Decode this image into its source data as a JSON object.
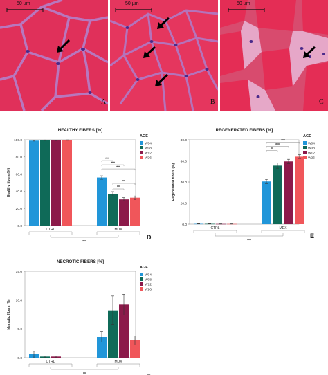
{
  "figure": {
    "panel_letters": [
      "A",
      "B",
      "C",
      "D",
      "E",
      "F"
    ],
    "scalebar_label": "50 µm"
  },
  "colors": {
    "W04": "#2196d9",
    "W08": "#0f6a58",
    "W12": "#8c1a4a",
    "W26": "#f0565a",
    "tissue": "#e5345a",
    "membrane": "#b482c8"
  },
  "chart_data": [
    {
      "type": "bar",
      "title": "HEALTHY FIBERS [%]",
      "ylabel": "Healthy fibers (%)",
      "ylim": [
        0,
        100
      ],
      "yticks": [
        "0.0",
        "20.0",
        "40.0",
        "60.0",
        "80.0",
        "100.0"
      ],
      "categories": [
        "CTRL",
        "MDX"
      ],
      "legend_title": "AGE",
      "series": [
        {
          "name": "W04",
          "values": [
            99.0,
            56.0
          ],
          "errors": [
            0.5,
            2.0
          ]
        },
        {
          "name": "W08",
          "values": [
            99.5,
            37.0
          ],
          "errors": [
            0.3,
            2.5
          ]
        },
        {
          "name": "W12",
          "values": [
            99.4,
            30.5
          ],
          "errors": [
            0.3,
            2.0
          ]
        },
        {
          "name": "W26",
          "values": [
            99.6,
            32.5
          ],
          "errors": [
            0.3,
            2.0
          ]
        }
      ],
      "significance_within": [
        "***",
        "***",
        "***",
        "**",
        "**"
      ],
      "significance_between": "***",
      "panel": "D"
    },
    {
      "type": "bar",
      "title": "REGENERATED FIBERS [%]",
      "ylabel": "Regenerated fibers (%)",
      "ylim": [
        0,
        80
      ],
      "yticks": [
        "0.0",
        "20.0",
        "40.0",
        "60.0",
        "80.0"
      ],
      "categories": [
        "CTRL",
        "MDX"
      ],
      "legend_title": "AGE",
      "series": [
        {
          "name": "W04",
          "values": [
            0.3,
            40.5
          ],
          "errors": [
            0.1,
            2.0
          ]
        },
        {
          "name": "W08",
          "values": [
            0.3,
            55.5
          ],
          "errors": [
            0.1,
            2.5
          ]
        },
        {
          "name": "W12",
          "values": [
            0.2,
            59.5
          ],
          "errors": [
            0.1,
            2.0
          ]
        },
        {
          "name": "W26",
          "values": [
            0.2,
            64.0
          ],
          "errors": [
            0.1,
            1.8
          ]
        }
      ],
      "significance_within": [
        "*",
        "***",
        "***"
      ],
      "significance_between": "***",
      "panel": "E"
    },
    {
      "type": "bar",
      "title": "NECROTIC FIBERS [%]",
      "ylabel": "Necrotic fibers (%)",
      "ylim": [
        0,
        15
      ],
      "yticks": [
        "0.0",
        "5.0",
        "10.0",
        "15.0"
      ],
      "categories": [
        "CTRL",
        "MDX"
      ],
      "legend_title": "AGE",
      "series": [
        {
          "name": "W04",
          "values": [
            0.6,
            3.6
          ],
          "errors": [
            0.5,
            0.9
          ]
        },
        {
          "name": "W08",
          "values": [
            0.2,
            8.2
          ],
          "errors": [
            0.1,
            2.5
          ]
        },
        {
          "name": "W12",
          "values": [
            0.2,
            9.2
          ],
          "errors": [
            0.1,
            1.8
          ]
        },
        {
          "name": "W26",
          "values": [
            0.0,
            3.0
          ],
          "errors": [
            0.0,
            0.8
          ]
        }
      ],
      "significance_within": [],
      "significance_between": "**",
      "panel": "F"
    }
  ]
}
